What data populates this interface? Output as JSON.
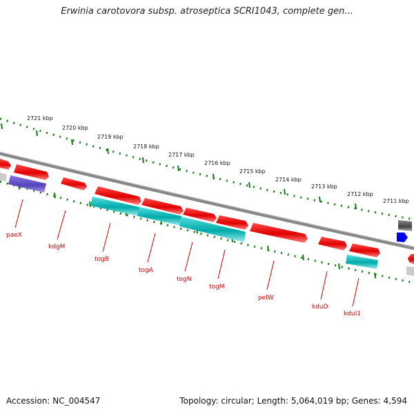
{
  "title": "Erwinia carotovora subsp. atroseptica SCRI1043, complete gen...",
  "accession": "Accession: NC_004547",
  "summary": "Topology: circular; Length: 5,064,019 bp; Genes: 4,594",
  "ticks": [
    {
      "label": "2721 kbp"
    },
    {
      "label": "2720 kbp"
    },
    {
      "label": "2719 kbp"
    },
    {
      "label": "2718 kbp"
    },
    {
      "label": "2717 kbp"
    },
    {
      "label": "2716 kbp"
    },
    {
      "label": "2715 kbp"
    },
    {
      "label": "2714 kbp"
    },
    {
      "label": "2713 kbp"
    },
    {
      "label": "2712 kbp"
    },
    {
      "label": "2711 kbp"
    }
  ],
  "genes": [
    {
      "label": "paeX"
    },
    {
      "label": "kdgM"
    },
    {
      "label": "togB"
    },
    {
      "label": "togA"
    },
    {
      "label": "togN"
    },
    {
      "label": "togM"
    },
    {
      "label": "pelW"
    },
    {
      "label": "kduD"
    },
    {
      "label": "kduI1"
    }
  ],
  "colors": {
    "forward": "#ee0000",
    "reverse": "#11bbbb",
    "other": "#6655cc",
    "backbone": "#888888",
    "tick": "#117711",
    "label": "#cc0000"
  }
}
